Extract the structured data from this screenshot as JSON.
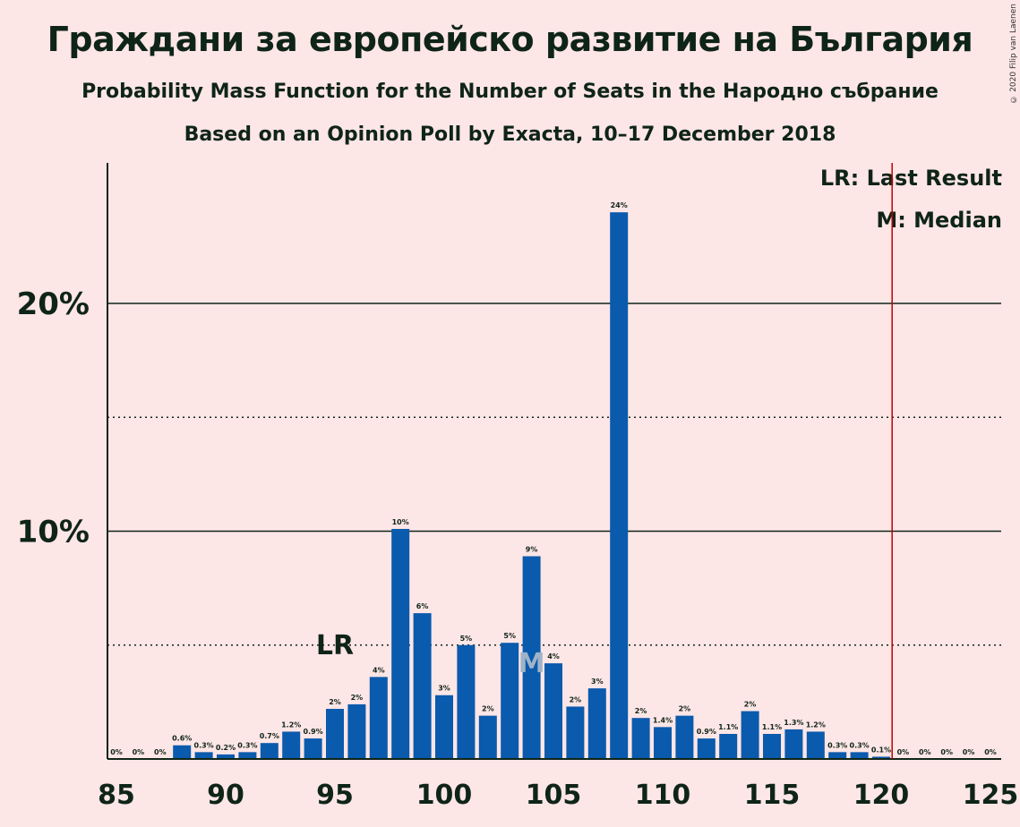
{
  "title": "Граждани за европейско развитие на България",
  "subtitle": "Probability Mass Function for the Number of Seats in the Народно събрание",
  "subtitle2": "Based on an Opinion Poll by Exacta, 10–17 December 2018",
  "copyright": "© 2020 Filip van Laenen",
  "legend": {
    "lr": "LR: Last Result",
    "m": "M: Median"
  },
  "colors": {
    "background": "#fde6e6",
    "bar": "#0a5aad",
    "last_result_line": "#c00000",
    "text": "#0f2418"
  },
  "chart_data": {
    "type": "bar",
    "x": [
      85,
      86,
      87,
      88,
      89,
      90,
      91,
      92,
      93,
      94,
      95,
      96,
      97,
      98,
      99,
      100,
      101,
      102,
      103,
      104,
      105,
      106,
      107,
      108,
      109,
      110,
      111,
      112,
      113,
      114,
      115,
      116,
      117,
      118,
      119,
      120,
      121,
      122,
      123,
      124,
      125
    ],
    "values": [
      0,
      0,
      0,
      0.6,
      0.3,
      0.2,
      0.3,
      0.7,
      1.2,
      0.9,
      2.2,
      2.4,
      3.6,
      10.1,
      6.4,
      2.8,
      5.0,
      1.9,
      5.1,
      8.9,
      4.2,
      2.3,
      3.1,
      24.0,
      1.8,
      1.4,
      1.9,
      0.9,
      1.1,
      2.1,
      1.1,
      1.3,
      1.2,
      0.3,
      0.3,
      0.1,
      0,
      0,
      0,
      0,
      0
    ],
    "labels": [
      "0%",
      "0%",
      "0%",
      "0.6%",
      "0.3%",
      "0.2%",
      "0.3%",
      "0.7%",
      "1.2%",
      "0.9%",
      "2%",
      "2%",
      "4%",
      "10%",
      "6%",
      "3%",
      "5%",
      "2%",
      "5%",
      "9%",
      "4%",
      "2%",
      "3%",
      "24%",
      "2%",
      "1.4%",
      "2%",
      "0.9%",
      "1.1%",
      "2%",
      "1.1%",
      "1.3%",
      "1.2%",
      "0.3%",
      "0.3%",
      "0.1%",
      "0%",
      "0%",
      "0%",
      "0%",
      "0%"
    ],
    "x_ticks": [
      85,
      90,
      95,
      100,
      105,
      110,
      115,
      120,
      125
    ],
    "x_tick_labels": [
      "85",
      "90",
      "95",
      "100",
      "105",
      "110",
      "115",
      "120",
      "125"
    ],
    "y_ticks": [
      10,
      20
    ],
    "y_tick_labels": [
      "10%",
      "20%"
    ],
    "y_minor_gridlines": [
      5,
      15
    ],
    "ylim": [
      0,
      26
    ],
    "xlim": [
      85,
      125
    ],
    "last_result_seat": 95,
    "last_result_label": "LR",
    "median_seat": 104,
    "median_label": "M",
    "majority_line_x": 120.5,
    "legend_position": "top-right"
  }
}
